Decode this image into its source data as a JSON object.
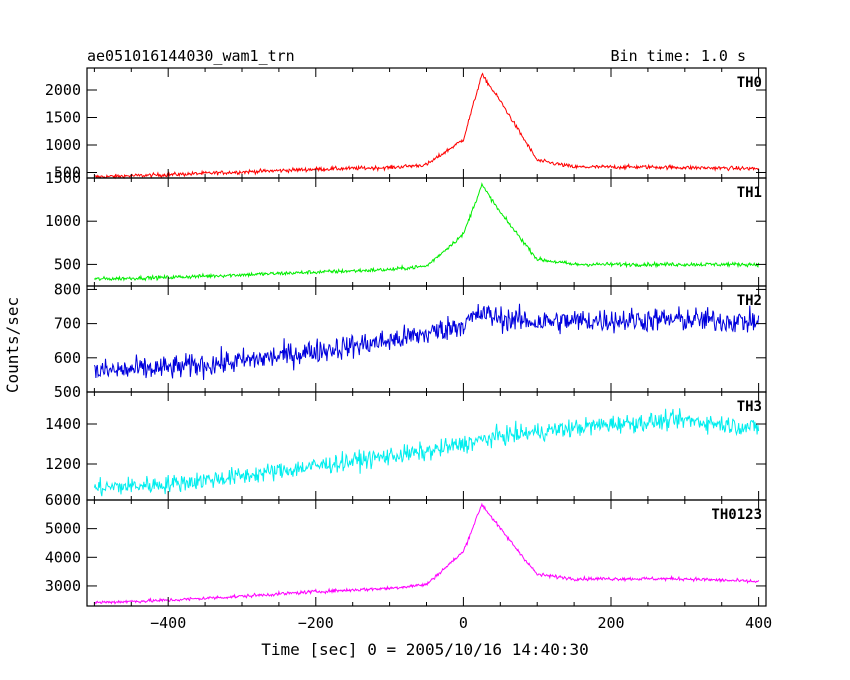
{
  "header": {
    "title": "ae051016144030_wam1_trn",
    "bin_time": "Bin time: 1.0 s"
  },
  "chart_data": {
    "type": "line",
    "xlabel": "Time [sec] 0 = 2005/10/16 14:40:30",
    "ylabel": "Counts/sec",
    "xlim": [
      -510,
      410
    ],
    "x_ticks": [
      -400,
      -200,
      0,
      200,
      400
    ],
    "x_tick_labels": [
      "−400",
      "−200",
      "0",
      "200",
      "400"
    ],
    "panels": [
      {
        "name": "TH0",
        "color": "#ff0000",
        "ylim": [
          400,
          2400
        ],
        "y_ticks": [
          500,
          1000,
          1500,
          2000
        ],
        "y_tick_labels": [
          "500",
          "1000",
          "1500",
          "2000"
        ],
        "trend": [
          [
            -500,
            420
          ],
          [
            -400,
            460
          ],
          [
            -300,
            510
          ],
          [
            -200,
            560
          ],
          [
            -100,
            590
          ],
          [
            -50,
            640
          ],
          [
            0,
            1100
          ],
          [
            25,
            2280
          ],
          [
            50,
            1800
          ],
          [
            100,
            720
          ],
          [
            150,
            600
          ],
          [
            250,
            600
          ],
          [
            400,
            570
          ]
        ],
        "noise": 35
      },
      {
        "name": "TH1",
        "color": "#00ee00",
        "ylim": [
          250,
          1500
        ],
        "y_ticks": [
          500,
          1000,
          1500
        ],
        "y_tick_labels": [
          "500",
          "1000",
          "1500"
        ],
        "trend": [
          [
            -500,
            330
          ],
          [
            -400,
            350
          ],
          [
            -300,
            380
          ],
          [
            -200,
            410
          ],
          [
            -100,
            440
          ],
          [
            -50,
            480
          ],
          [
            0,
            850
          ],
          [
            25,
            1420
          ],
          [
            50,
            1100
          ],
          [
            100,
            560
          ],
          [
            150,
            500
          ],
          [
            300,
            500
          ],
          [
            400,
            500
          ]
        ],
        "noise": 22
      },
      {
        "name": "TH2",
        "color": "#0000dd",
        "ylim": [
          500,
          810
        ],
        "y_ticks": [
          500,
          600,
          700,
          800
        ],
        "y_tick_labels": [
          "500",
          "600",
          "700",
          "800"
        ],
        "trend": [
          [
            -500,
            560
          ],
          [
            -400,
            570
          ],
          [
            -300,
            590
          ],
          [
            -200,
            620
          ],
          [
            -100,
            650
          ],
          [
            -50,
            670
          ],
          [
            0,
            700
          ],
          [
            25,
            730
          ],
          [
            50,
            715
          ],
          [
            100,
            705
          ],
          [
            200,
            710
          ],
          [
            300,
            712
          ],
          [
            400,
            705
          ]
        ],
        "noise": 35
      },
      {
        "name": "TH3",
        "color": "#00eeee",
        "ylim": [
          1020,
          1560
        ],
        "y_ticks": [
          1200,
          1400
        ],
        "y_tick_labels": [
          "1200",
          "1400"
        ],
        "trend": [
          [
            -500,
            1080
          ],
          [
            -400,
            1100
          ],
          [
            -300,
            1140
          ],
          [
            -200,
            1190
          ],
          [
            -100,
            1240
          ],
          [
            -50,
            1260
          ],
          [
            0,
            1300
          ],
          [
            50,
            1340
          ],
          [
            100,
            1360
          ],
          [
            200,
            1400
          ],
          [
            300,
            1420
          ],
          [
            400,
            1380
          ]
        ],
        "noise": 45
      },
      {
        "name": "TH0123",
        "color": "#ff00ff",
        "ylim": [
          2300,
          6000
        ],
        "y_ticks": [
          3000,
          4000,
          5000,
          6000
        ],
        "y_tick_labels": [
          "3000",
          "4000",
          "5000",
          "6000"
        ],
        "trend": [
          [
            -500,
            2420
          ],
          [
            -400,
            2500
          ],
          [
            -300,
            2640
          ],
          [
            -200,
            2800
          ],
          [
            -100,
            2920
          ],
          [
            -50,
            3050
          ],
          [
            0,
            4200
          ],
          [
            25,
            5850
          ],
          [
            50,
            5000
          ],
          [
            100,
            3400
          ],
          [
            150,
            3250
          ],
          [
            300,
            3250
          ],
          [
            400,
            3150
          ]
        ],
        "noise": 60
      }
    ]
  }
}
